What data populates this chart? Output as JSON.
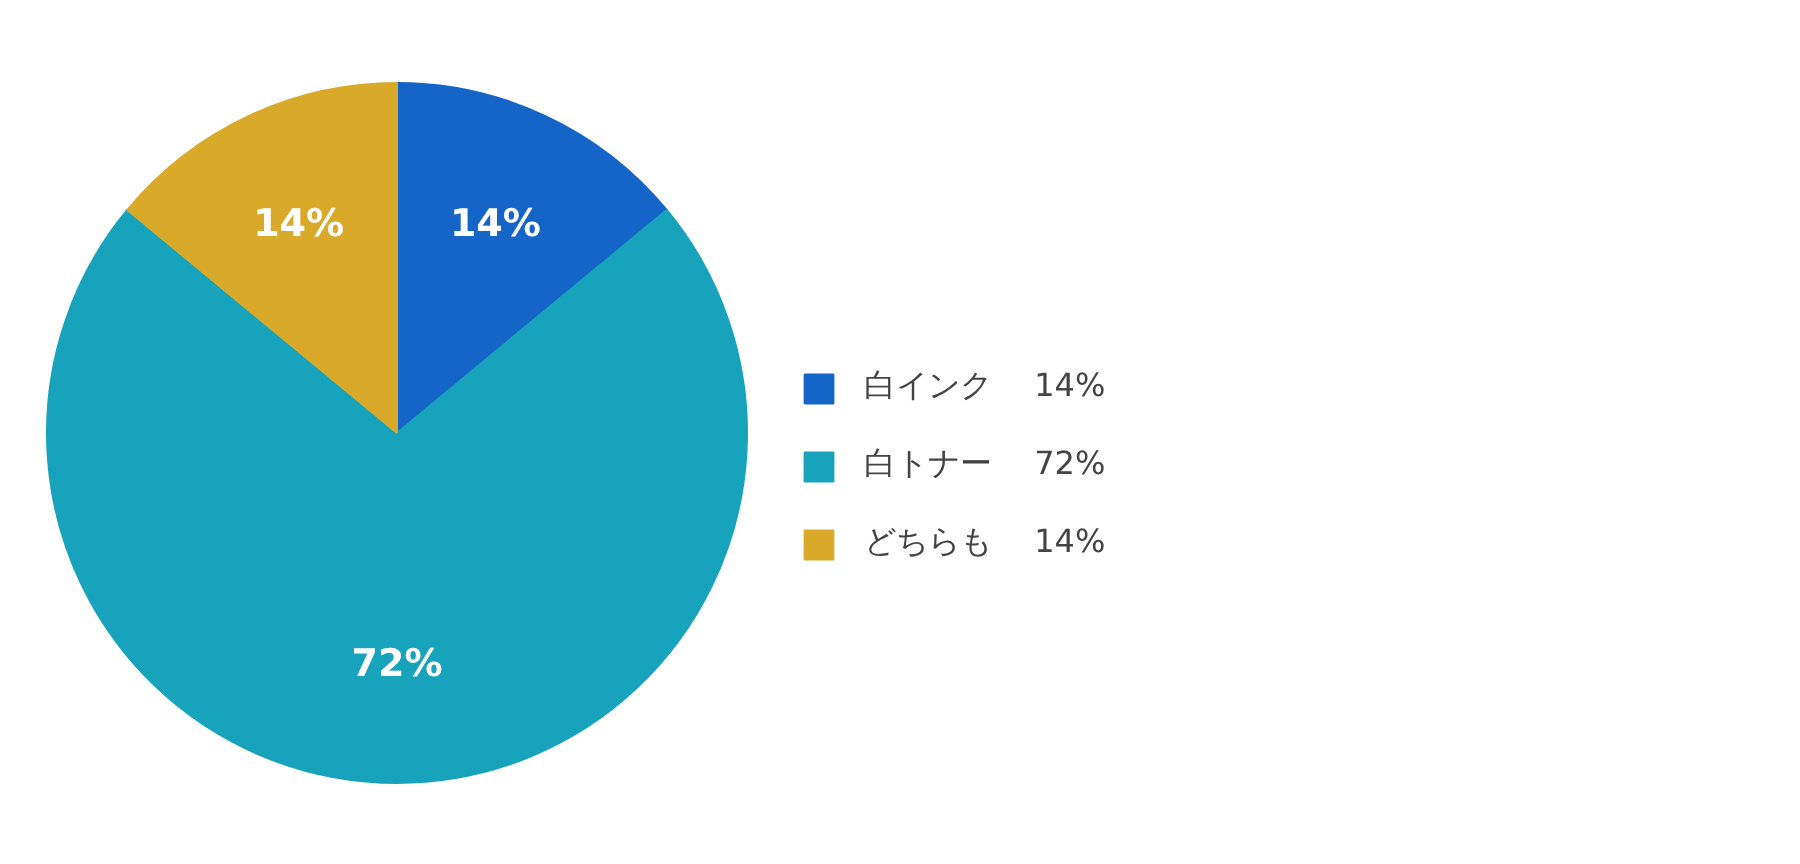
{
  "chart_data": {
    "type": "pie",
    "categories": [
      "白インク",
      "白トナー",
      "どちらも"
    ],
    "values": [
      14,
      72,
      14
    ],
    "value_labels": [
      "14%",
      "72%",
      "14%"
    ],
    "colors": [
      "#1565c8",
      "#17a3bb",
      "#d9aa2a"
    ],
    "legend": "right"
  }
}
